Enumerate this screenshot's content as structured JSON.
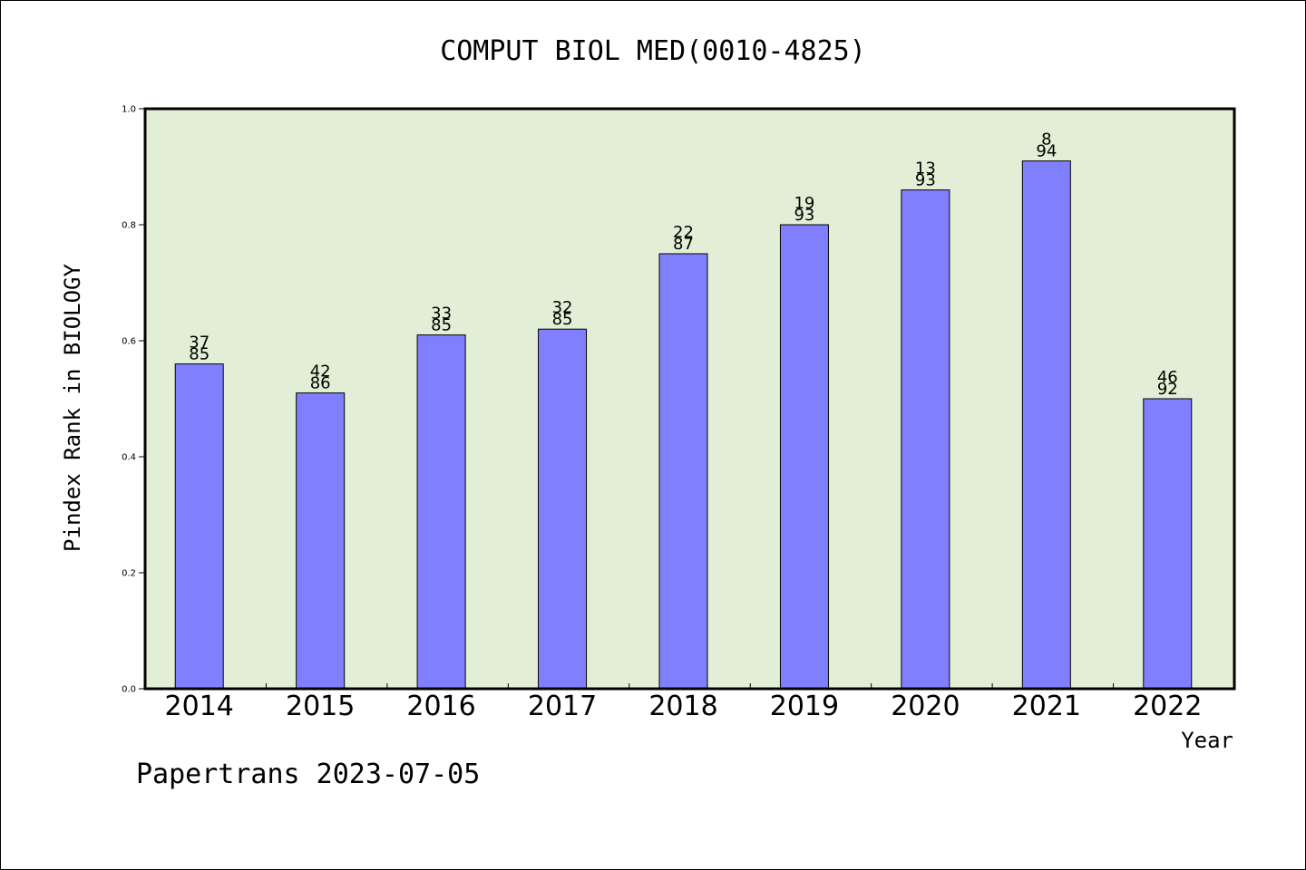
{
  "chart_data": {
    "type": "bar",
    "title": "COMPUT BIOL MED(0010-4825)",
    "xlabel": "Year",
    "ylabel": "Pindex Rank in BIOLOGY",
    "ylim": [
      0,
      1.0
    ],
    "yticks": [
      "0.0",
      "0.2",
      "0.4",
      "0.6",
      "0.8",
      "1.0"
    ],
    "grid": false,
    "categories": [
      "2014",
      "2015",
      "2016",
      "2017",
      "2018",
      "2019",
      "2020",
      "2021",
      "2022"
    ],
    "values": [
      0.56,
      0.51,
      0.61,
      0.62,
      0.75,
      0.8,
      0.86,
      0.91,
      0.5
    ],
    "label_top": [
      "37",
      "42",
      "33",
      "32",
      "22",
      "19",
      "13",
      "8",
      "46"
    ],
    "label_bottom": [
      "85",
      "86",
      "85",
      "85",
      "87",
      "93",
      "93",
      "94",
      "92"
    ],
    "colors": {
      "bar": "#8080ff",
      "plot_bg": "#e2efd6",
      "axis": "#000000"
    }
  },
  "footer": "Papertrans 2023-07-05"
}
